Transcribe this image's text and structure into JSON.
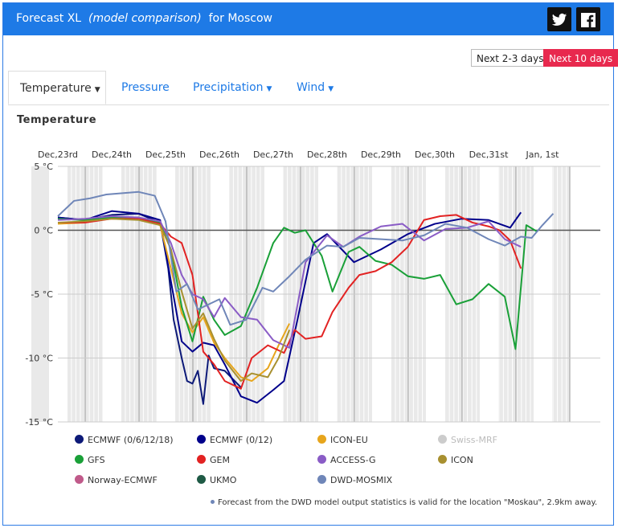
{
  "header": {
    "title_main": "Forecast XL",
    "title_italic": "(model comparison)",
    "title_tail": "for Moscow",
    "twitter_label": "t",
    "facebook_label": "f"
  },
  "range_buttons": {
    "short": "Next 2-3 days",
    "long": "Next 10 days"
  },
  "tabs": [
    {
      "label": "Temperature",
      "active": true
    },
    {
      "label": "Pressure"
    },
    {
      "label": "Precipitation"
    },
    {
      "label": "Wind"
    }
  ],
  "footnote": "Forecast from the DWD model output statistics is valid for the location \"Moskau\", 2.9km away.",
  "chart_data": {
    "type": "line",
    "title": "Temperature",
    "x_tick_labels": [
      "Dec,23rd",
      "Dec,24th",
      "Dec,25th",
      "Dec,26th",
      "Dec,27th",
      "Dec,28th",
      "Dec,29th",
      "Dec,30th",
      "Dec,31st",
      "Jan, 1st"
    ],
    "x_range_days": [
      0,
      10
    ],
    "ylim": [
      -15,
      5
    ],
    "y_ticks": [
      5,
      0,
      -5,
      -10,
      -15
    ],
    "y_tick_labels": [
      "5 °C",
      "0 °C",
      "-5 °C",
      "-10 °C",
      "-15 °C"
    ],
    "grid": true,
    "legend_position": "bottom",
    "series": [
      {
        "name": "ECMWF (0/6/12/18)",
        "color": "#0d1a78",
        "x": [
          0,
          0.5,
          1,
          1.5,
          1.9,
          2.05,
          2.15,
          2.3,
          2.4,
          2.5,
          2.6,
          2.7,
          2.8,
          2.9,
          3.1,
          3.4
        ],
        "y": [
          1,
          0.8,
          1.2,
          1.3,
          0.6,
          -3,
          -7,
          -10,
          -11.8,
          -12,
          -11,
          -13.6,
          -9.8,
          -10.8,
          -11,
          -12.3
        ]
      },
      {
        "name": "ECMWF (0/12)",
        "color": "#00008b",
        "x": [
          0,
          0.5,
          1,
          1.5,
          1.9,
          2.1,
          2.3,
          2.5,
          2.7,
          2.9,
          3.1,
          3.4,
          3.7,
          4.0,
          4.2,
          4.45,
          4.75,
          5.0,
          5.5,
          6.0,
          6.5,
          7.0,
          7.5,
          8.0,
          8.4,
          8.6
        ],
        "y": [
          1,
          0.8,
          1.5,
          1.3,
          0.8,
          -4,
          -8.7,
          -9.5,
          -8.8,
          -9,
          -10.5,
          -13,
          -13.5,
          -12.5,
          -11.8,
          -7,
          -1,
          -0.3,
          -2.5,
          -1.5,
          -0.3,
          0.5,
          0.9,
          0.8,
          0.2,
          1.4
        ]
      },
      {
        "name": "ICON-EU",
        "color": "#e7a51c",
        "x": [
          0,
          0.5,
          1,
          1.5,
          1.9,
          2.1,
          2.3,
          2.5,
          2.7,
          2.9,
          3.1,
          3.4,
          3.6,
          3.9,
          4.1,
          4.3
        ],
        "y": [
          0.5,
          0.6,
          1,
          1,
          0.4,
          -3,
          -6.5,
          -8,
          -6.8,
          -8.8,
          -10,
          -11.5,
          -11.8,
          -10.8,
          -9,
          -7.3
        ]
      },
      {
        "name": "Swiss-MRF",
        "color": "#cccccc",
        "x": [],
        "y": []
      },
      {
        "name": "GFS",
        "color": "#1aa038",
        "x": [
          0,
          0.5,
          1,
          1.5,
          1.9,
          2.1,
          2.3,
          2.5,
          2.7,
          2.9,
          3.1,
          3.4,
          3.7,
          4.0,
          4.2,
          4.4,
          4.6,
          4.9,
          5.1,
          5.4,
          5.6,
          5.9,
          6.2,
          6.5,
          6.8,
          7.1,
          7.4,
          7.7,
          8.0,
          8.3,
          8.5,
          8.7,
          8.9
        ],
        "y": [
          0.9,
          0.8,
          1,
          0.9,
          0.6,
          -1.5,
          -6,
          -8.7,
          -5.2,
          -7,
          -8.2,
          -7.5,
          -4.5,
          -1,
          0.2,
          -0.2,
          0,
          -2,
          -4.8,
          -1.7,
          -1.3,
          -2.4,
          -2.7,
          -3.6,
          -3.8,
          -3.5,
          -5.8,
          -5.4,
          -4.2,
          -5.2,
          -9.3,
          0.4,
          -0.1
        ]
      },
      {
        "name": "GEM",
        "color": "#e22222",
        "x": [
          0,
          0.5,
          1,
          1.5,
          1.9,
          2.1,
          2.3,
          2.5,
          2.7,
          2.9,
          3.1,
          3.4,
          3.6,
          3.9,
          4.2,
          4.4,
          4.6,
          4.9,
          5.1,
          5.4,
          5.6,
          5.9,
          6.2,
          6.5,
          6.8,
          7.1,
          7.4,
          7.7,
          8.0,
          8.2,
          8.4,
          8.6
        ],
        "y": [
          0.6,
          0.6,
          0.9,
          0.9,
          0.5,
          -0.5,
          -1,
          -3.5,
          -9.5,
          -10.5,
          -11.8,
          -12.4,
          -10,
          -9,
          -9.6,
          -7.8,
          -8.5,
          -8.3,
          -6.4,
          -4.5,
          -3.5,
          -3.2,
          -2.5,
          -1.3,
          0.8,
          1.1,
          1.2,
          0.6,
          0.3,
          0,
          -0.8,
          -3
        ]
      },
      {
        "name": "ACCESS-G",
        "color": "#8a5cc6",
        "x": [
          0,
          0.5,
          1,
          1.5,
          1.9,
          2.1,
          2.3,
          2.5,
          2.7,
          2.9,
          3.1,
          3.4,
          3.7,
          4.0,
          4.3,
          4.6,
          5.0,
          5.3,
          5.6,
          6.0,
          6.4,
          6.8,
          7.2,
          7.6,
          8.0,
          8.3,
          8.6
        ],
        "y": [
          0.8,
          0.9,
          1.1,
          1,
          0.7,
          -1,
          -3.5,
          -5,
          -5.4,
          -6.8,
          -5.3,
          -6.8,
          -7,
          -8.6,
          -9.2,
          -2.5,
          -0.4,
          -1.3,
          -0.5,
          0.3,
          0.5,
          -0.8,
          0.1,
          0.2,
          0.7,
          -0.7,
          -1.3
        ]
      },
      {
        "name": "ICON",
        "color": "#a89030",
        "x": [
          0,
          0.5,
          1,
          1.5,
          1.9,
          2.1,
          2.3,
          2.5,
          2.7,
          2.9,
          3.1,
          3.4,
          3.6,
          3.9,
          4.1,
          4.3
        ],
        "y": [
          0.6,
          0.7,
          0.9,
          0.8,
          0.4,
          -1.5,
          -4.8,
          -7.7,
          -6.5,
          -8.5,
          -10.2,
          -11.8,
          -11.2,
          -11.5,
          -10,
          -7.8
        ]
      },
      {
        "name": "Norway-ECMWF",
        "color": "#c05a8a",
        "x": [],
        "y": []
      },
      {
        "name": "UKMO",
        "color": "#1f5a45",
        "x": [],
        "y": []
      },
      {
        "name": "DWD-MOSMIX",
        "color": "#6f86b8",
        "x": [
          0,
          0.3,
          0.6,
          0.9,
          1.2,
          1.5,
          1.8,
          2.0,
          2.2,
          2.4,
          2.6,
          2.8,
          3.0,
          3.2,
          3.5,
          3.8,
          4.0,
          4.3,
          4.6,
          5.0,
          5.3,
          5.6,
          6.0,
          6.4,
          6.8,
          7.2,
          7.6,
          8.0,
          8.3,
          8.6,
          8.8,
          9.0,
          9.2
        ],
        "y": [
          1.1,
          2.3,
          2.5,
          2.8,
          2.9,
          3.0,
          2.7,
          0.7,
          -4.8,
          -4.2,
          -6.2,
          -5.8,
          -5.4,
          -7.4,
          -7,
          -4.5,
          -4.8,
          -3.6,
          -2.3,
          -1.2,
          -1.3,
          -0.6,
          -0.7,
          -0.8,
          -0.4,
          0.5,
          0.2,
          -0.7,
          -1.2,
          -0.5,
          -0.6,
          0.4,
          1.3
        ]
      }
    ]
  }
}
